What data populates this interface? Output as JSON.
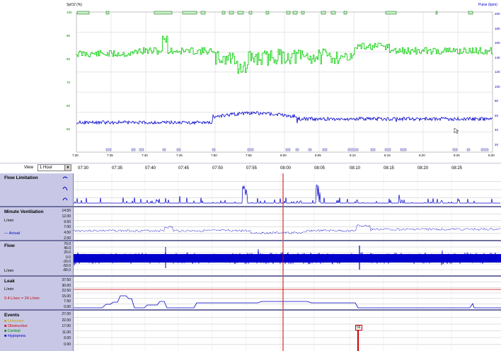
{
  "top_chart": {
    "left_axis_title": "SpO2 (%)",
    "right_axis_title": "Pulse (bpm)",
    "left_axis_ticks": [
      "100",
      "90",
      "80",
      "70",
      "60",
      "50"
    ],
    "right_axis_ticks": [
      "200",
      "180",
      "160",
      "140",
      "120",
      "100",
      "80",
      "60",
      "40",
      "20"
    ],
    "time_ticks": [
      "7:30",
      "7:35",
      "7:40",
      "7:45",
      "7:50",
      "7:55",
      "8:00",
      "8:05",
      "8:10",
      "8:15",
      "8:20",
      "8:25",
      "8:30"
    ],
    "spo2_color": "#00cc00",
    "pulse_color": "#0000cc"
  },
  "timebar": {
    "view_label": "View",
    "view_value": "1 Hour",
    "ticks": [
      "07:30",
      "07:35",
      "07:40",
      "07:45",
      "07:50",
      "07:55",
      "08:00",
      "08:05",
      "08:10",
      "08:15",
      "08:20",
      "08:25"
    ]
  },
  "panels": {
    "flow_limitation": {
      "title": "Flow Limitation"
    },
    "minute_ventilation": {
      "title": "Minute Ventilation",
      "unit": "L/min",
      "legend": "Actual",
      "ticks": [
        "14.50",
        "12.00",
        "9.50",
        "7.00",
        "4.50",
        "2.00"
      ]
    },
    "flow": {
      "title": "Flow",
      "unit": "L/min",
      "ticks": [
        "70.0",
        "40.0",
        "20.0",
        "0.0",
        "-20.0",
        "-50.0",
        "-80.0"
      ]
    },
    "leak": {
      "title": "Leak",
      "unit": "L/min",
      "threshold_label": "0.4 L/sec = 24 L/min",
      "ticks": [
        "37.50",
        "30.00",
        "22.50",
        "15.00",
        "7.50",
        "0.00"
      ]
    },
    "events": {
      "title": "Events",
      "legend": [
        "Unknown",
        "Obstructive",
        "Central",
        "Hypopnea"
      ],
      "ticks": [
        "27.00",
        "22.00",
        "17.00",
        "11.00",
        "6.00",
        "0.00"
      ],
      "marker_label": "56"
    }
  },
  "colors": {
    "panel_label_bg": "#c8c8e6",
    "trace": "#0000cc",
    "cursor": "#cc0000",
    "threshold": "#cc0000"
  }
}
